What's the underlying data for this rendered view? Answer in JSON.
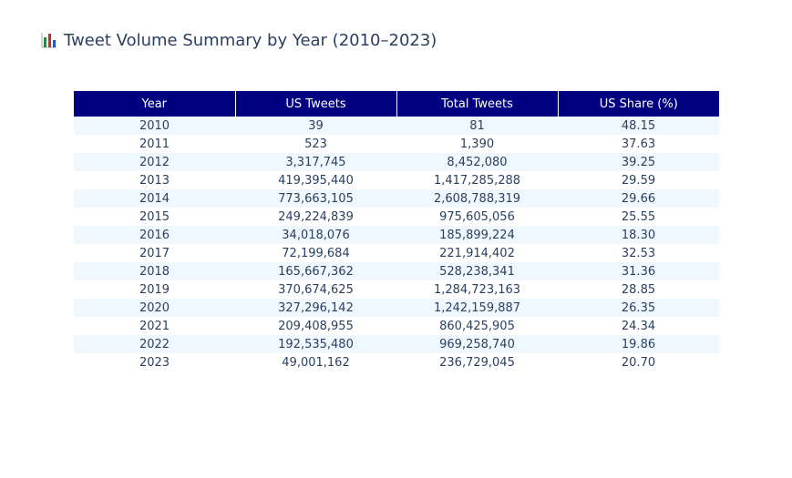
{
  "chart_data": {
    "type": "table",
    "title": "Tweet Volume Summary by Year (2010–2023)",
    "title_icon": "bar-chart-icon",
    "header_color": "#000080",
    "stripe_color": "#f0f8ff",
    "columns": [
      "Year",
      "US Tweets",
      "Total Tweets",
      "US Share (%)"
    ],
    "rows": [
      [
        "2010",
        "39",
        "81",
        "48.15"
      ],
      [
        "2011",
        "523",
        "1,390",
        "37.63"
      ],
      [
        "2012",
        "3,317,745",
        "8,452,080",
        "39.25"
      ],
      [
        "2013",
        "419,395,440",
        "1,417,285,288",
        "29.59"
      ],
      [
        "2014",
        "773,663,105",
        "2,608,788,319",
        "29.66"
      ],
      [
        "2015",
        "249,224,839",
        "975,605,056",
        "25.55"
      ],
      [
        "2016",
        "34,018,076",
        "185,899,224",
        "18.30"
      ],
      [
        "2017",
        "72,199,684",
        "221,914,402",
        "32.53"
      ],
      [
        "2018",
        "165,667,362",
        "528,238,341",
        "31.36"
      ],
      [
        "2019",
        "370,674,625",
        "1,284,723,163",
        "28.85"
      ],
      [
        "2020",
        "327,296,142",
        "1,242,159,887",
        "26.35"
      ],
      [
        "2021",
        "209,408,955",
        "860,425,905",
        "24.34"
      ],
      [
        "2022",
        "192,535,480",
        "969,258,740",
        "19.86"
      ],
      [
        "2023",
        "49,001,162",
        "236,729,045",
        "20.70"
      ]
    ]
  }
}
